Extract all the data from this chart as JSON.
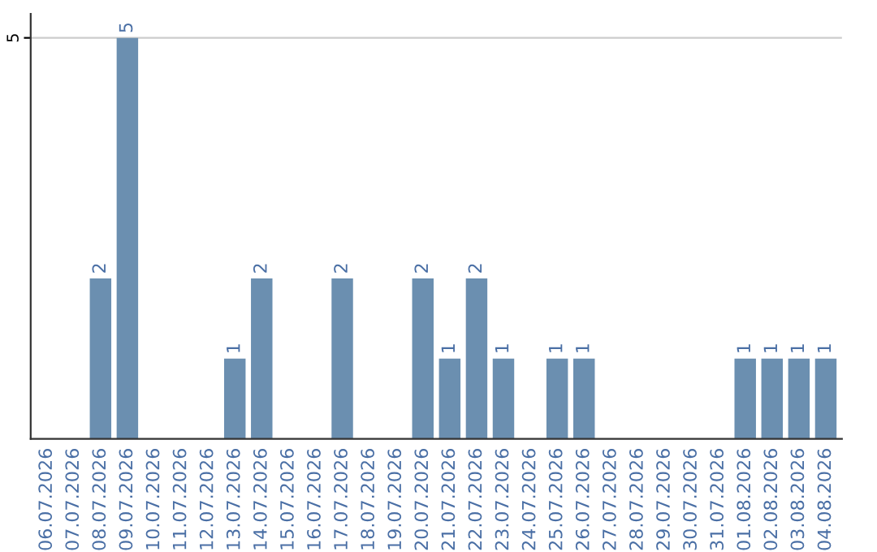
{
  "chart_data": {
    "type": "bar",
    "categories": [
      "06.07.2026",
      "07.07.2026",
      "08.07.2026",
      "09.07.2026",
      "10.07.2026",
      "11.07.2026",
      "12.07.2026",
      "13.07.2026",
      "14.07.2026",
      "15.07.2026",
      "16.07.2026",
      "17.07.2026",
      "18.07.2026",
      "19.07.2026",
      "20.07.2026",
      "21.07.2026",
      "22.07.2026",
      "23.07.2026",
      "24.07.2026",
      "25.07.2026",
      "26.07.2026",
      "27.07.2026",
      "28.07.2026",
      "29.07.2026",
      "30.07.2026",
      "31.07.2026",
      "01.08.2026",
      "02.08.2026",
      "03.08.2026",
      "04.08.2026"
    ],
    "values": [
      0,
      0,
      2,
      5,
      0,
      0,
      0,
      1,
      2,
      0,
      0,
      2,
      0,
      0,
      2,
      1,
      2,
      1,
      0,
      1,
      1,
      0,
      0,
      0,
      0,
      0,
      1,
      1,
      1,
      1
    ],
    "value_labels": [
      null,
      null,
      "2",
      "5",
      null,
      null,
      null,
      "1",
      "2",
      null,
      null,
      "2",
      null,
      null,
      "2",
      "1",
      "2",
      "1",
      null,
      "1",
      "1",
      null,
      null,
      null,
      null,
      null,
      "1",
      "1",
      "1",
      "1"
    ],
    "color": "#6b8fb0",
    "ylim": [
      0,
      5.3
    ],
    "yticks": [
      5
    ],
    "grid": "y"
  }
}
